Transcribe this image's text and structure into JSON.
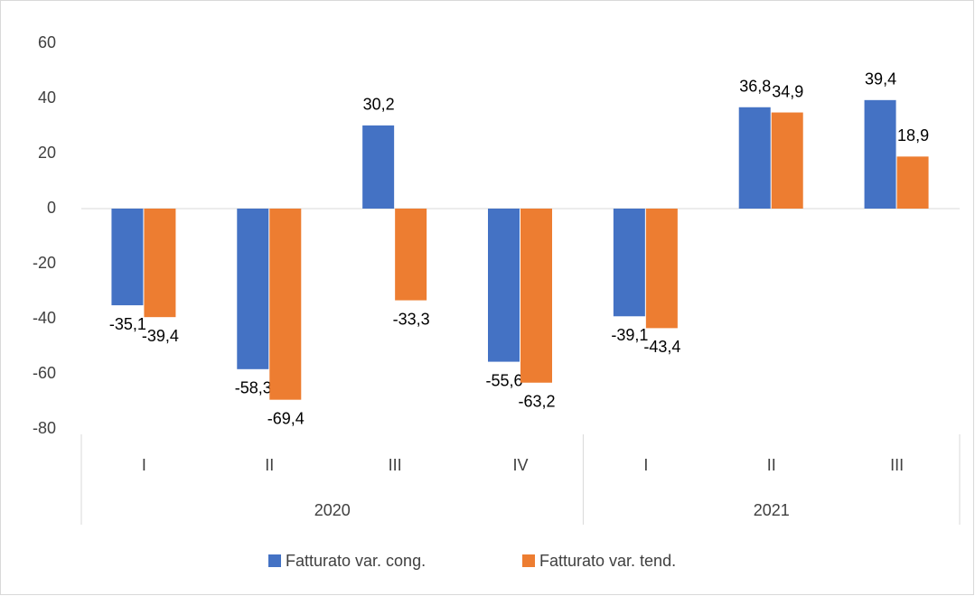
{
  "chart_data": {
    "type": "bar",
    "categories": [
      "I",
      "II",
      "III",
      "IV",
      "I",
      "II",
      "III"
    ],
    "category_groups": [
      {
        "label": "2020",
        "count": 4
      },
      {
        "label": "2021",
        "count": 3
      }
    ],
    "series": [
      {
        "name": "Fatturato var. cong.",
        "color": "#4472c4",
        "values": [
          -35.1,
          -58.3,
          30.2,
          -55.6,
          -39.1,
          36.8,
          39.4
        ],
        "value_labels": [
          "-35,1",
          "-58,3",
          "30,2",
          "-55,6",
          "-39,1",
          "36,8",
          "39,4"
        ]
      },
      {
        "name": "Fatturato var. tend.",
        "color": "#ed7d31",
        "values": [
          -39.4,
          -69.4,
          -33.3,
          -63.2,
          -43.4,
          34.9,
          18.9
        ],
        "value_labels": [
          "-39,4",
          "-69,4",
          "-33,3",
          "-63,2",
          "-43,4",
          "34,9",
          "18,9"
        ]
      }
    ],
    "ylim": [
      -80,
      60
    ],
    "yticks": [
      -80,
      -60,
      -40,
      -20,
      0,
      20,
      40,
      60
    ],
    "grid": false,
    "legend": "bottom"
  }
}
